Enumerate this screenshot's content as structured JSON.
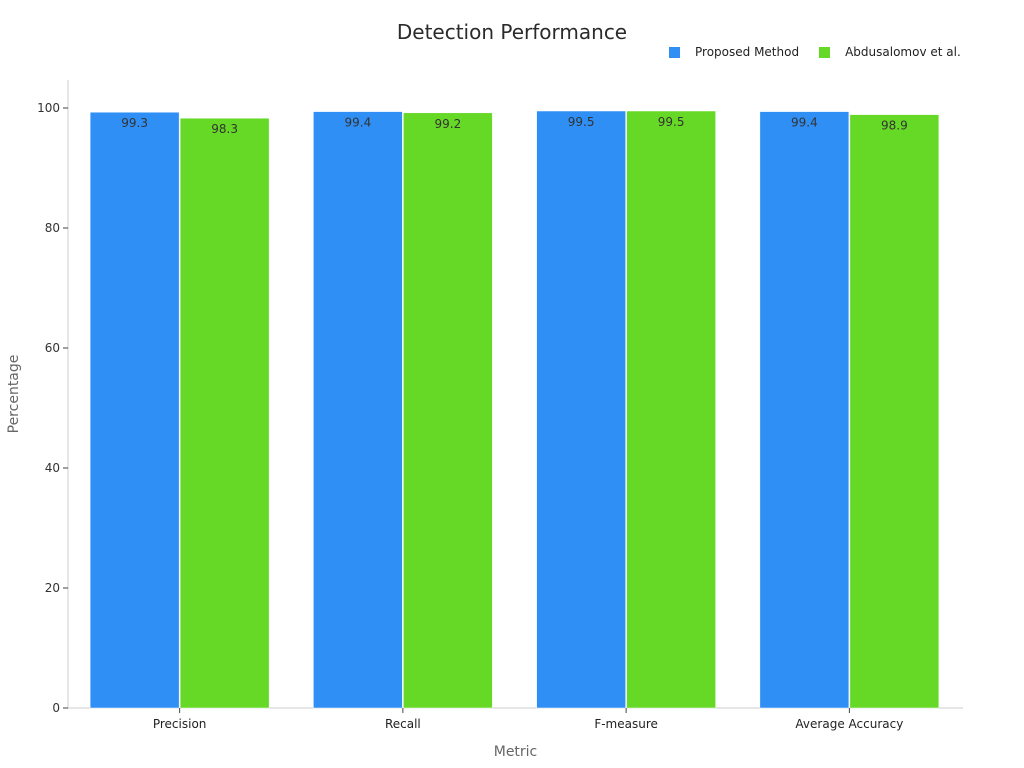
{
  "chart_data": {
    "type": "bar",
    "title": "Detection Performance",
    "xlabel": "Metric",
    "ylabel": "Percentage",
    "categories": [
      "Precision",
      "Recall",
      "F-measure",
      "Average Accuracy"
    ],
    "series": [
      {
        "name": "Proposed Method",
        "color": "#2f8ff5",
        "values": [
          99.3,
          99.4,
          99.5,
          99.4
        ]
      },
      {
        "name": "Abdusalomov et al.",
        "color": "#66d926",
        "values": [
          98.3,
          99.2,
          99.5,
          98.9
        ]
      }
    ],
    "ylim": [
      0,
      105
    ],
    "yticks": [
      0,
      20,
      40,
      60,
      80,
      100
    ],
    "grid": false,
    "legend_position": "top-right"
  }
}
